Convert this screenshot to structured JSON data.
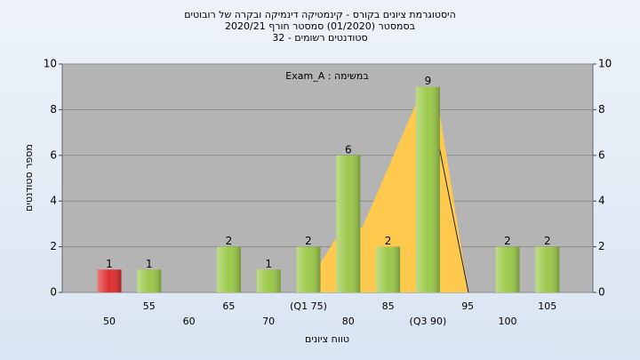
{
  "chart_data": {
    "type": "bar",
    "title": "היסטוגרמת ציונים בקורס - קינמטיקה דינמיקה ובקרה של רובוטים",
    "subtitle": "בסמסטר  (01/2020)  סמסטר חורף 2020/21",
    "subtitle2": "סטודנטים רשומים - 32",
    "annotation": "במשימה : Exam_A",
    "x_label": "טווח ציונים",
    "y_label": "מספר סטודנטים",
    "categories": [
      "50",
      "55",
      "60",
      "65",
      "70",
      "(Q1 75)",
      "80",
      "85",
      "(Q3 90)",
      "95",
      "100",
      "105"
    ],
    "values": [
      1,
      1,
      0,
      2,
      1,
      2,
      6,
      2,
      9,
      0,
      2,
      2
    ],
    "colors": [
      "#e03030",
      "#9cc94a",
      "#9cc94a",
      "#9cc94a",
      "#9cc94a",
      "#9cc94a",
      "#9cc94a",
      "#9cc94a",
      "#9cc94a",
      "#9cc94a",
      "#9cc94a",
      "#9cc94a"
    ],
    "ylim": [
      0,
      10
    ],
    "yticks": [
      0,
      2,
      4,
      6,
      8,
      10
    ],
    "y2lim": [
      0,
      10
    ],
    "y2ticks": [
      0,
      2,
      4,
      6,
      8,
      10
    ],
    "grid": true
  }
}
